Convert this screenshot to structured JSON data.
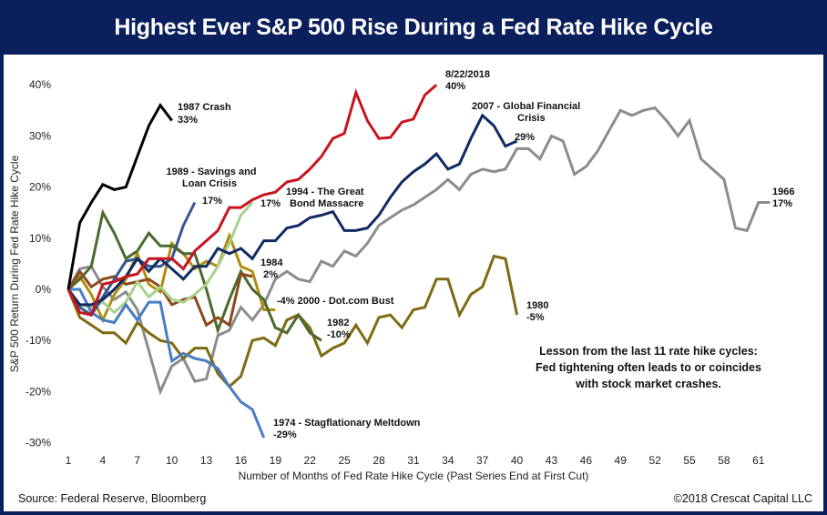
{
  "header": {
    "title": "Highest Ever S&P 500 Rise During a Fed Rate Hike Cycle"
  },
  "footer": {
    "source": "Source: Federal Reserve, Bloomberg",
    "copyright": "©2018 Crescat Capital LLC"
  },
  "lesson": [
    "Lesson from the last 11 rate hike cycles:",
    "Fed tightening often leads to or coincides",
    "with stock market crashes."
  ],
  "chart_data": {
    "type": "line",
    "title": "Highest Ever S&P 500 Rise During a Fed Rate Hike Cycle",
    "xlabel": "Number of Months of Fed Rate Hike Cycle (Past Series End at First Cut)",
    "ylabel": "S&P 500 Return During Fed Rate Hike Cycle",
    "xlim": [
      1,
      62
    ],
    "ylim": [
      -30,
      40
    ],
    "x_ticks": [
      "1",
      "4",
      "7",
      "10",
      "13",
      "16",
      "19",
      "22",
      "25",
      "28",
      "31",
      "34",
      "37",
      "40",
      "43",
      "46",
      "49",
      "52",
      "55",
      "58",
      "61"
    ],
    "y_ticks": [
      "40%",
      "30%",
      "20%",
      "10%",
      "0%",
      "-10%",
      "-20%",
      "-30%"
    ],
    "y_tick_values": [
      40,
      30,
      20,
      10,
      0,
      -10,
      -20,
      -30
    ],
    "grid": false,
    "series": [
      {
        "name": "1966",
        "color": "#8c8c8c",
        "label": [
          "1966",
          "17%"
        ],
        "values": [
          0,
          4,
          4.5,
          0.5,
          -2,
          -0.5,
          -4,
          -12,
          -20,
          -15,
          -13.5,
          -18,
          -17.5,
          -9,
          -8,
          -3.5,
          -6,
          -3,
          2,
          3.5,
          2,
          1.5,
          5.5,
          4.5,
          7.5,
          6.5,
          9,
          12.5,
          14,
          15.5,
          16.5,
          18,
          19.5,
          21.5,
          19.5,
          22.5,
          23.5,
          23,
          23.5,
          27.5,
          27.5,
          25.5,
          30,
          29,
          22.5,
          24,
          27,
          31,
          35,
          34,
          35,
          35.5,
          33,
          30,
          33,
          25.5,
          23.5,
          21.5,
          12,
          11.5,
          17,
          17
        ]
      },
      {
        "name": "1980",
        "color": "#7f6a14",
        "label": [
          "1980",
          "-5%"
        ],
        "values": [
          0,
          -5.5,
          -7,
          -8.5,
          -8.5,
          -10.5,
          -6.5,
          -8.5,
          -10,
          -10.5,
          -13.5,
          -11.5,
          -11.5,
          -16.5,
          -19,
          -17,
          -10,
          -9.5,
          -11,
          -6,
          -5,
          -7.5,
          -13,
          -11.5,
          -10.5,
          -7,
          -10.5,
          -5.5,
          -5,
          -7.5,
          -4,
          -3.5,
          2,
          2,
          -5,
          -1,
          0.5,
          6.5,
          6,
          -5
        ]
      },
      {
        "name": "2000 - Dot.com Bust",
        "color": "#b08d0e",
        "label": [
          "-4%  2000 - Dot.com Bust"
        ],
        "values": [
          0,
          2.5,
          -1,
          -6,
          -1,
          2,
          7,
          1,
          -0.5,
          9,
          7,
          4,
          5.5,
          4.5,
          10.5,
          4.5,
          3.5,
          -4,
          -4
        ]
      },
      {
        "name": "1982",
        "color": "#4a6a2e",
        "label": [
          "1982",
          "-10%"
        ],
        "values": [
          0,
          2,
          4.5,
          15,
          11,
          6,
          7.5,
          11,
          8.5,
          8.5,
          7,
          7,
          0,
          -8,
          -2,
          3.5,
          0,
          -2,
          -7.5,
          -8.5,
          -5,
          -8.5,
          -10
        ]
      },
      {
        "name": "1984",
        "color": "#8b4a1c",
        "label": [
          "1984",
          "2%"
        ],
        "values": [
          0,
          3.5,
          0.5,
          2,
          2.5,
          1,
          1.5,
          2,
          0.5,
          -3,
          -2,
          -1.5,
          -7,
          -5.5,
          -7,
          3,
          2.5
        ]
      },
      {
        "name": "1994 - The Great Bond Massacre",
        "color": "#a9d18e",
        "label": [
          "1994 - The Great",
          "Bond Massacre",
          "17%"
        ],
        "values": [
          0,
          -3,
          -3.5,
          -2.5,
          -4.5,
          -2.5,
          1.5,
          -1.5,
          0.5,
          -2,
          -2.5,
          -1,
          1,
          4.5,
          9,
          14.5,
          17
        ]
      },
      {
        "name": "1974 - Stagflationary Meltdown",
        "color": "#4a7cc4",
        "label": [
          "1974 - Stagflationary Meltdown",
          "-29%"
        ],
        "values": [
          0,
          0,
          -4.5,
          -6,
          -6.5,
          -3,
          -6,
          -2.5,
          -2.5,
          -14,
          -12.5,
          -13.5,
          -14,
          -15.5,
          -19,
          -22,
          -23.5,
          -29
        ]
      },
      {
        "name": "1989 - Savings and Loan Crisis",
        "color": "#34578f",
        "label": [
          "1989 - Savings and",
          "Loan Crisis",
          "17%"
        ],
        "values": [
          0,
          -3.5,
          -5,
          -1.5,
          2,
          5.5,
          6,
          4.5,
          4.5,
          6,
          12.5,
          17
        ]
      },
      {
        "name": "2007 - Global Financial Crisis",
        "color": "#0f2a63",
        "label": [
          "2007 - Global Financial",
          "Crisis",
          "29%"
        ],
        "values": [
          0,
          -3,
          -3,
          -2,
          0,
          2.5,
          6,
          3.5,
          6,
          4,
          2,
          4.5,
          4.5,
          8,
          7,
          8,
          6,
          9.5,
          9.5,
          12,
          12.5,
          14,
          14.5,
          15.2,
          11.5,
          11.5,
          12,
          14.5,
          18,
          21,
          23,
          24.5,
          26.5,
          23.5,
          24.5,
          29.5,
          34,
          32,
          28,
          29
        ]
      },
      {
        "name": "8/22/2018",
        "color": "#c8141e",
        "label": [
          "8/22/2018",
          "40%"
        ],
        "values": [
          0,
          -4.5,
          -5,
          1,
          1.5,
          2.5,
          3,
          6,
          6,
          6,
          4,
          7.5,
          9.5,
          11.5,
          16,
          16,
          17.5,
          18.5,
          19,
          21,
          21.5,
          23.5,
          26,
          29.5,
          30.5,
          38.5,
          33,
          29.5,
          29.7,
          32.7,
          33.3,
          38,
          40
        ]
      },
      {
        "name": "1987 Crash",
        "color": "#000000",
        "label": [
          "1987 Crash",
          "33%"
        ],
        "values": [
          0,
          13,
          17,
          20.5,
          19.5,
          20,
          26,
          32,
          36,
          33
        ]
      }
    ]
  }
}
